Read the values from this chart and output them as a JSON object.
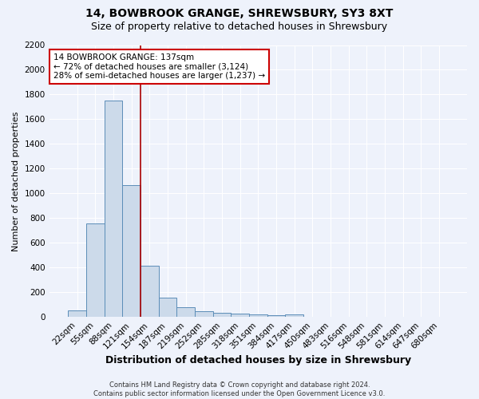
{
  "title1": "14, BOWBROOK GRANGE, SHREWSBURY, SY3 8XT",
  "title2": "Size of property relative to detached houses in Shrewsbury",
  "xlabel": "Distribution of detached houses by size in Shrewsbury",
  "ylabel": "Number of detached properties",
  "footer1": "Contains HM Land Registry data © Crown copyright and database right 2024.",
  "footer2": "Contains public sector information licensed under the Open Government Licence v3.0.",
  "bar_labels": [
    "22sqm",
    "55sqm",
    "88sqm",
    "121sqm",
    "154sqm",
    "187sqm",
    "219sqm",
    "252sqm",
    "285sqm",
    "318sqm",
    "351sqm",
    "384sqm",
    "417sqm",
    "450sqm",
    "483sqm",
    "516sqm",
    "548sqm",
    "581sqm",
    "614sqm",
    "647sqm",
    "680sqm"
  ],
  "bar_values": [
    55,
    760,
    1750,
    1070,
    415,
    155,
    80,
    45,
    35,
    25,
    18,
    12,
    20,
    0,
    0,
    0,
    0,
    0,
    0,
    0,
    0
  ],
  "bar_color": "#ccdaea",
  "bar_edge_color": "#5b8db8",
  "ylim": [
    0,
    2200
  ],
  "yticks": [
    0,
    200,
    400,
    600,
    800,
    1000,
    1200,
    1400,
    1600,
    1800,
    2000,
    2200
  ],
  "vline_x": 3.5,
  "vline_color": "#aa0000",
  "annotation_text": "14 BOWBROOK GRANGE: 137sqm\n← 72% of detached houses are smaller (3,124)\n28% of semi-detached houses are larger (1,237) →",
  "annotation_box_facecolor": "#ffffff",
  "annotation_box_edgecolor": "#cc0000",
  "bg_color": "#eef2fb",
  "grid_color": "#ffffff",
  "title1_fontsize": 10,
  "title2_fontsize": 9,
  "xlabel_fontsize": 9,
  "ylabel_fontsize": 8,
  "tick_fontsize": 7.5,
  "annotation_fontsize": 7.5,
  "footer_fontsize": 6
}
